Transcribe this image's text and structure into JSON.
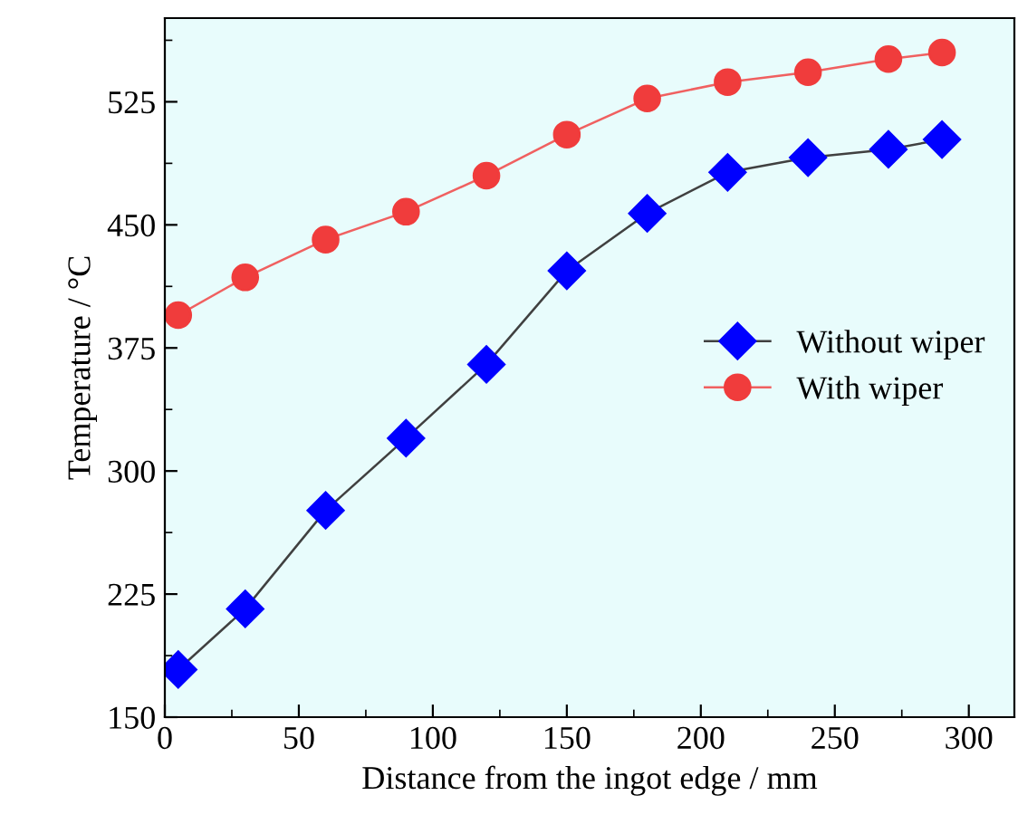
{
  "chart_data": {
    "type": "line",
    "xlabel": "Distance from the ingot edge / mm",
    "ylabel": "Temperature / °C",
    "x": [
      5,
      30,
      60,
      90,
      120,
      150,
      180,
      210,
      240,
      270,
      290
    ],
    "series": [
      {
        "name": "Without wiper",
        "color": "#0000ff",
        "marker": "diamond",
        "values": [
          179,
          216,
          276,
          320,
          365,
          422,
          457,
          482,
          491,
          496,
          502
        ]
      },
      {
        "name": "With wiper",
        "color": "#f03c3c",
        "marker": "circle",
        "values": [
          395,
          418,
          441,
          458,
          480,
          505,
          527,
          537,
          543,
          551,
          555
        ]
      }
    ],
    "xlim": [
      0,
      317
    ],
    "xticks": [
      0,
      50,
      100,
      150,
      200,
      250,
      300
    ],
    "ylim": [
      150,
      576
    ],
    "yticks": [
      150,
      225,
      300,
      375,
      450,
      525
    ],
    "grid": false,
    "legend": "right",
    "line_style": "solid"
  }
}
